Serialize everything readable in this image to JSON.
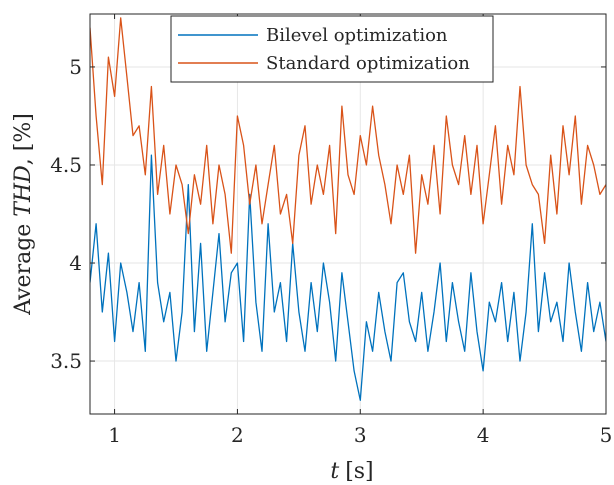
{
  "chart_data": {
    "type": "line",
    "xlabel_prefix": "t",
    "xlabel_unit": "[s]",
    "ylabel_prefix": "Average ",
    "ylabel_var": "THD",
    "ylabel_unit": ", [%]",
    "xlim": [
      0.8,
      5.0
    ],
    "ylim": [
      3.23,
      5.27
    ],
    "xticks": [
      1,
      2,
      3,
      4,
      5
    ],
    "xtick_labels": [
      "1",
      "2",
      "3",
      "4",
      "5"
    ],
    "yticks": [
      3.5,
      4,
      4.5,
      5
    ],
    "ytick_labels": [
      "3.5",
      "4",
      "4.5",
      "5"
    ],
    "grid": true,
    "legend_position": "top-center",
    "colors": {
      "bilevel": "#0072BD",
      "standard": "#D95319",
      "grid": "#e6e6e6",
      "axis": "#262626"
    },
    "series": [
      {
        "name": "Bilevel optimization",
        "color": "#0072BD",
        "x": [
          0.8,
          0.85,
          0.9,
          0.95,
          1.0,
          1.05,
          1.1,
          1.15,
          1.2,
          1.25,
          1.3,
          1.35,
          1.4,
          1.45,
          1.5,
          1.55,
          1.6,
          1.65,
          1.7,
          1.75,
          1.8,
          1.85,
          1.9,
          1.95,
          2.0,
          2.05,
          2.1,
          2.15,
          2.2,
          2.25,
          2.3,
          2.35,
          2.4,
          2.45,
          2.5,
          2.55,
          2.6,
          2.65,
          2.7,
          2.75,
          2.8,
          2.85,
          2.9,
          2.95,
          3.0,
          3.05,
          3.1,
          3.15,
          3.2,
          3.25,
          3.3,
          3.35,
          3.4,
          3.45,
          3.5,
          3.55,
          3.6,
          3.65,
          3.7,
          3.75,
          3.8,
          3.85,
          3.9,
          3.95,
          4.0,
          4.05,
          4.1,
          4.15,
          4.2,
          4.25,
          4.3,
          4.35,
          4.4,
          4.45,
          4.5,
          4.55,
          4.6,
          4.65,
          4.7,
          4.75,
          4.8,
          4.85,
          4.9,
          4.95,
          5.0
        ],
        "y": [
          3.9,
          4.2,
          3.75,
          4.05,
          3.6,
          4.0,
          3.85,
          3.65,
          3.9,
          3.55,
          4.55,
          3.9,
          3.7,
          3.85,
          3.5,
          3.75,
          4.4,
          3.65,
          4.1,
          3.55,
          3.85,
          4.15,
          3.7,
          3.95,
          4.0,
          3.6,
          4.35,
          3.8,
          3.55,
          4.2,
          3.75,
          3.9,
          3.6,
          4.1,
          3.75,
          3.55,
          3.9,
          3.65,
          4.0,
          3.8,
          3.5,
          3.95,
          3.7,
          3.45,
          3.3,
          3.7,
          3.55,
          3.85,
          3.65,
          3.5,
          3.9,
          3.95,
          3.7,
          3.6,
          3.85,
          3.55,
          3.75,
          4.0,
          3.6,
          3.9,
          3.7,
          3.55,
          3.95,
          3.65,
          3.45,
          3.8,
          3.7,
          3.9,
          3.6,
          3.85,
          3.5,
          3.75,
          4.2,
          3.65,
          3.95,
          3.7,
          3.8,
          3.6,
          4.0,
          3.75,
          3.55,
          3.9,
          3.65,
          3.8,
          3.6
        ]
      },
      {
        "name": "Standard optimization",
        "color": "#D95319",
        "x": [
          0.8,
          0.85,
          0.9,
          0.95,
          1.0,
          1.05,
          1.1,
          1.15,
          1.2,
          1.25,
          1.3,
          1.35,
          1.4,
          1.45,
          1.5,
          1.55,
          1.6,
          1.65,
          1.7,
          1.75,
          1.8,
          1.85,
          1.9,
          1.95,
          2.0,
          2.05,
          2.1,
          2.15,
          2.2,
          2.25,
          2.3,
          2.35,
          2.4,
          2.45,
          2.5,
          2.55,
          2.6,
          2.65,
          2.7,
          2.75,
          2.8,
          2.85,
          2.9,
          2.95,
          3.0,
          3.05,
          3.1,
          3.15,
          3.2,
          3.25,
          3.3,
          3.35,
          3.4,
          3.45,
          3.5,
          3.55,
          3.6,
          3.65,
          3.7,
          3.75,
          3.8,
          3.85,
          3.9,
          3.95,
          4.0,
          4.05,
          4.1,
          4.15,
          4.2,
          4.25,
          4.3,
          4.35,
          4.4,
          4.45,
          4.5,
          4.55,
          4.6,
          4.65,
          4.7,
          4.75,
          4.8,
          4.85,
          4.9,
          4.95,
          5.0
        ],
        "y": [
          5.2,
          4.75,
          4.4,
          5.05,
          4.85,
          5.25,
          4.95,
          4.65,
          4.7,
          4.45,
          4.9,
          4.35,
          4.6,
          4.25,
          4.5,
          4.4,
          4.15,
          4.45,
          4.3,
          4.6,
          4.2,
          4.5,
          4.35,
          4.05,
          4.75,
          4.6,
          4.3,
          4.5,
          4.2,
          4.4,
          4.6,
          4.25,
          4.35,
          4.1,
          4.55,
          4.7,
          4.3,
          4.5,
          4.35,
          4.6,
          4.15,
          4.8,
          4.45,
          4.35,
          4.65,
          4.5,
          4.8,
          4.55,
          4.4,
          4.2,
          4.5,
          4.35,
          4.55,
          4.05,
          4.45,
          4.3,
          4.6,
          4.25,
          4.75,
          4.5,
          4.4,
          4.65,
          4.35,
          4.6,
          4.2,
          4.45,
          4.7,
          4.3,
          4.6,
          4.45,
          4.9,
          4.5,
          4.4,
          4.35,
          4.1,
          4.55,
          4.25,
          4.7,
          4.45,
          4.75,
          4.3,
          4.6,
          4.5,
          4.35,
          4.4
        ]
      }
    ]
  }
}
